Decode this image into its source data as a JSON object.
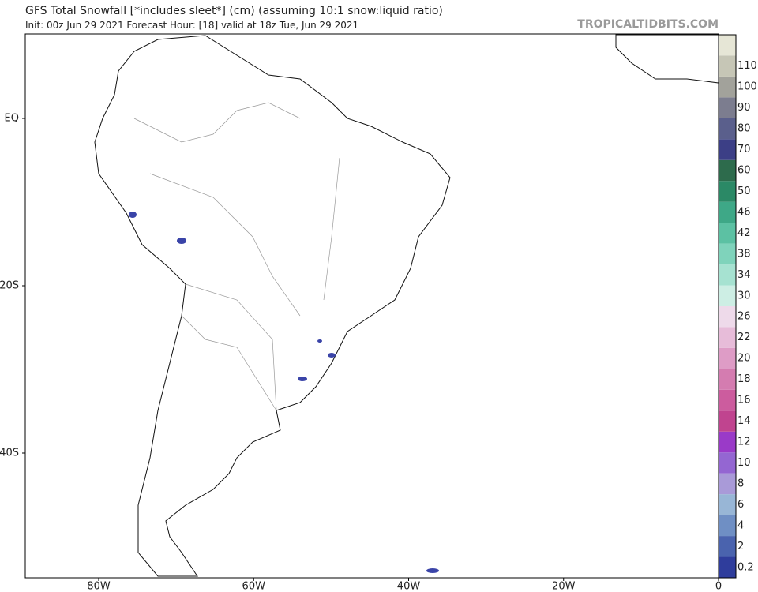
{
  "header": {
    "title": "GFS Total Snowfall [*includes sleet*] (cm) (assuming 10:1 snow:liquid ratio)",
    "subtitle": "Init: 00z Jun 29 2021   Forecast Hour: [18]   valid at 18z Tue, Jun 29 2021",
    "watermark": "TROPICALTIDBITS.COM"
  },
  "map": {
    "lat_labels": [
      "EQ",
      "20S",
      "40S"
    ],
    "lon_labels": [
      "80W",
      "60W",
      "40W",
      "20W",
      "0"
    ]
  },
  "colorbar": {
    "labels": [
      "0.2",
      "2",
      "4",
      "6",
      "8",
      "10",
      "12",
      "14",
      "16",
      "18",
      "20",
      "22",
      "26",
      "30",
      "34",
      "38",
      "42",
      "46",
      "50",
      "60",
      "70",
      "80",
      "90",
      "100",
      "110"
    ],
    "colors": [
      "#2f3d9c",
      "#4a63ae",
      "#6f8fc4",
      "#98b6d6",
      "#a99ad8",
      "#9466d2",
      "#9a3ac8",
      "#c0448f",
      "#cc5c9e",
      "#d47cb0",
      "#de9cc6",
      "#e7bcd9",
      "#eedaea",
      "#cdeee4",
      "#a6e2d1",
      "#7fd3bb",
      "#5cc1a3",
      "#3ea887",
      "#2b8966",
      "#2d6b4c",
      "#3c3f86",
      "#5a5f8c",
      "#7c7d8f",
      "#a2a29b",
      "#c6c6b6",
      "#e6e6d6"
    ]
  }
}
